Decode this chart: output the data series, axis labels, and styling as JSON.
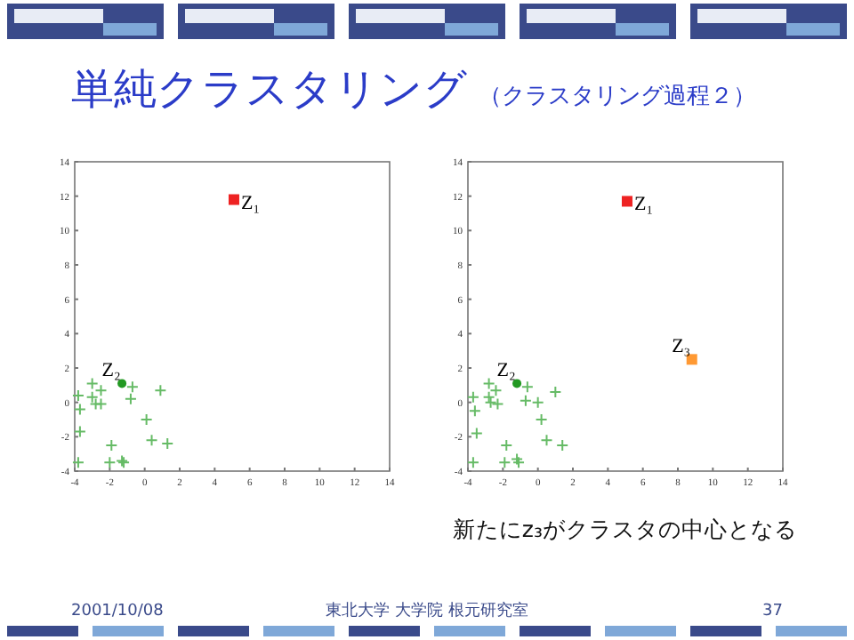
{
  "chart_data": [
    {
      "type": "other",
      "title": "単純クラスタリング",
      "subtitle": "（クラスタリング過程２）",
      "annotations": [
        "2001/10/08",
        "東北大学 大学院 根元研究室",
        "37"
      ]
    },
    {
      "type": "scatter",
      "xlim": [
        -4,
        14
      ],
      "ylim": [
        -4,
        14
      ],
      "xticks": [
        -4,
        -2,
        0,
        2,
        4,
        6,
        8,
        10,
        12,
        14
      ],
      "yticks": [
        -4,
        -2,
        0,
        2,
        4,
        6,
        8,
        10,
        12,
        14
      ],
      "grid": false,
      "series": [
        {
          "marker": "cross",
          "color": "#66bb66",
          "x": [
            -3.8,
            -3.7,
            -3.7,
            -3.8,
            -3.0,
            -3.0,
            -2.8,
            -2.5,
            -2.5,
            -1.9,
            -2.0,
            -1.3,
            -1.2,
            -0.7,
            -0.8,
            0.1,
            0.4,
            0.9,
            1.3
          ],
          "values": [
            0.4,
            -0.4,
            -1.7,
            -3.5,
            1.1,
            0.3,
            -0.1,
            0.7,
            -0.1,
            -2.5,
            -3.5,
            -3.4,
            -3.5,
            0.9,
            0.2,
            -1.0,
            -2.2,
            0.7,
            -2.4
          ]
        },
        {
          "name": "Z₂",
          "marker": "circle",
          "color": "#229922",
          "x": [
            -1.3
          ],
          "values": [
            1.1
          ]
        },
        {
          "name": "Z₁",
          "marker": "square",
          "color": "#ee2222",
          "x": [
            5.1
          ],
          "values": [
            11.8
          ]
        }
      ]
    },
    {
      "type": "scatter",
      "xlim": [
        -4,
        14
      ],
      "ylim": [
        -4,
        14
      ],
      "xticks": [
        -4,
        -2,
        0,
        2,
        4,
        6,
        8,
        10,
        12,
        14
      ],
      "yticks": [
        -4,
        -2,
        0,
        2,
        4,
        6,
        8,
        10,
        12,
        14
      ],
      "grid": false,
      "annotations": [
        "新たにz₃がクラスタの中心となる"
      ],
      "series": [
        {
          "marker": "cross",
          "color": "#66bb66",
          "x": [
            -3.7,
            -3.6,
            -3.5,
            -3.7,
            -2.8,
            -2.8,
            -2.7,
            -2.4,
            -2.3,
            -1.8,
            -1.9,
            -1.2,
            -1.1,
            -0.6,
            -0.7,
            0.0,
            0.2,
            0.5,
            1.0,
            1.4
          ],
          "values": [
            0.3,
            -0.5,
            -1.8,
            -3.5,
            1.1,
            0.3,
            0.0,
            0.7,
            -0.1,
            -2.5,
            -3.5,
            -3.3,
            -3.5,
            0.9,
            0.1,
            0.0,
            -1.0,
            -2.2,
            0.6,
            -2.5
          ]
        },
        {
          "name": "Z₂",
          "marker": "circle",
          "color": "#229922",
          "x": [
            -1.2
          ],
          "values": [
            1.1
          ]
        },
        {
          "name": "Z₁",
          "marker": "square",
          "color": "#ee2222",
          "x": [
            5.1
          ],
          "values": [
            11.7
          ]
        },
        {
          "name": "Z₃",
          "marker": "square",
          "color": "#ff9933",
          "x": [
            8.8
          ],
          "values": [
            2.5
          ]
        }
      ]
    }
  ]
}
